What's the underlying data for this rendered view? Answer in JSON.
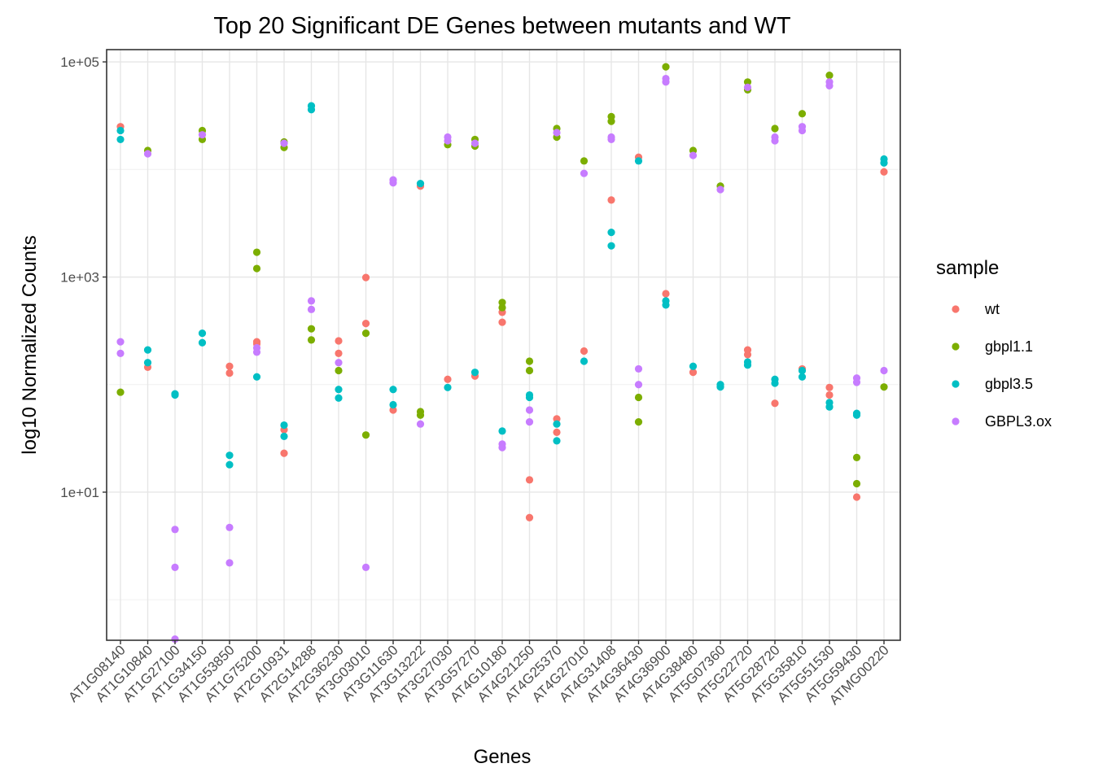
{
  "chart_data": {
    "type": "scatter",
    "title": "Top 20 Significant DE Genes between mutants and WT",
    "xlabel": "Genes",
    "ylabel": "log10 Normalized Counts",
    "y_scale": "log10",
    "ylim": [
      0.42,
      130000
    ],
    "yticks": [
      10,
      1000,
      100000
    ],
    "ytick_labels": [
      "1e+01",
      "1e+03",
      "1e+05"
    ],
    "grid": true,
    "legend_position": "right",
    "legend_title": "sample",
    "categories": [
      "AT1G08140",
      "AT1G10840",
      "AT1G27100",
      "AT1G34150",
      "AT1G53850",
      "AT1G75200",
      "AT2G10931",
      "AT2G14288",
      "AT2G36230",
      "AT3G03010",
      "AT3G11630",
      "AT3G13222",
      "AT3G27030",
      "AT3G57270",
      "AT4G10180",
      "AT4G21250",
      "AT4G25370",
      "AT4G27010",
      "AT4G31408",
      "AT4G36430",
      "AT4G36900",
      "AT4G38480",
      "AT5G07360",
      "AT5G22720",
      "AT5G28720",
      "AT5G35810",
      "AT5G51530",
      "AT5G59430",
      "ATMG00220"
    ],
    "series": [
      {
        "name": "wt",
        "color": "#F8766D",
        "points": [
          [
            "AT1G08140",
            25000
          ],
          [
            "AT1G10840",
            145
          ],
          [
            "AT1G53850",
            148
          ],
          [
            "AT1G53850",
            128
          ],
          [
            "AT1G75200",
            250
          ],
          [
            "AT1G75200",
            240
          ],
          [
            "AT2G10931",
            38
          ],
          [
            "AT2G10931",
            23
          ],
          [
            "AT2G36230",
            255
          ],
          [
            "AT2G36230",
            195
          ],
          [
            "AT3G03010",
            990
          ],
          [
            "AT3G03010",
            370
          ],
          [
            "AT3G11630",
            58
          ],
          [
            "AT3G13222",
            7000
          ],
          [
            "AT3G27030",
            112
          ],
          [
            "AT3G57270",
            120
          ],
          [
            "AT4G10180",
            470
          ],
          [
            "AT4G10180",
            380
          ],
          [
            "AT4G21250",
            13
          ],
          [
            "AT4G21250",
            5.8
          ],
          [
            "AT4G25370",
            48
          ],
          [
            "AT4G25370",
            36
          ],
          [
            "AT4G27010",
            205
          ],
          [
            "AT4G31408",
            5200
          ],
          [
            "AT4G36430",
            13000
          ],
          [
            "AT4G36900",
            700
          ],
          [
            "AT4G38480",
            130
          ],
          [
            "AT5G22720",
            210
          ],
          [
            "AT5G22720",
            190
          ],
          [
            "AT5G28720",
            67
          ],
          [
            "AT5G35810",
            140
          ],
          [
            "AT5G51530",
            94
          ],
          [
            "AT5G51530",
            80
          ],
          [
            "AT5G59430",
            9
          ],
          [
            "ATMG00220",
            9500
          ]
        ]
      },
      {
        "name": "gbpl1.1",
        "color": "#7CAE00",
        "points": [
          [
            "AT1G08140",
            85
          ],
          [
            "AT1G10840",
            15000
          ],
          [
            "AT1G34150",
            23000
          ],
          [
            "AT1G34150",
            19000
          ],
          [
            "AT1G75200",
            1700
          ],
          [
            "AT1G75200",
            1200
          ],
          [
            "AT2G10931",
            18000
          ],
          [
            "AT2G10931",
            16000
          ],
          [
            "AT2G14288",
            330
          ],
          [
            "AT2G14288",
            260
          ],
          [
            "AT2G36230",
            135
          ],
          [
            "AT3G03010",
            300
          ],
          [
            "AT3G03010",
            34
          ],
          [
            "AT3G13222",
            56
          ],
          [
            "AT3G13222",
            52
          ],
          [
            "AT3G27030",
            17000
          ],
          [
            "AT3G57270",
            19000
          ],
          [
            "AT3G57270",
            16500
          ],
          [
            "AT4G10180",
            580
          ],
          [
            "AT4G10180",
            520
          ],
          [
            "AT4G21250",
            165
          ],
          [
            "AT4G21250",
            135
          ],
          [
            "AT4G25370",
            24000
          ],
          [
            "AT4G25370",
            20000
          ],
          [
            "AT4G27010",
            12000
          ],
          [
            "AT4G31408",
            31000
          ],
          [
            "AT4G31408",
            28000
          ],
          [
            "AT4G36430",
            76
          ],
          [
            "AT4G36430",
            45
          ],
          [
            "AT4G36900",
            90000
          ],
          [
            "AT4G38480",
            15000
          ],
          [
            "AT5G07360",
            7000
          ],
          [
            "AT5G22720",
            65000
          ],
          [
            "AT5G22720",
            55000
          ],
          [
            "AT5G28720",
            24000
          ],
          [
            "AT5G35810",
            33000
          ],
          [
            "AT5G51530",
            75000
          ],
          [
            "AT5G59430",
            21
          ],
          [
            "AT5G59430",
            12
          ],
          [
            "ATMG00220",
            95
          ]
        ]
      },
      {
        "name": "gbpl3.5",
        "color": "#00BFC4",
        "points": [
          [
            "AT1G08140",
            23000
          ],
          [
            "AT1G08140",
            19000
          ],
          [
            "AT1G10840",
            210
          ],
          [
            "AT1G10840",
            160
          ],
          [
            "AT1G27100",
            82
          ],
          [
            "AT1G27100",
            80
          ],
          [
            "AT1G34150",
            300
          ],
          [
            "AT1G34150",
            245
          ],
          [
            "AT1G53850",
            22
          ],
          [
            "AT1G53850",
            18
          ],
          [
            "AT1G75200",
            118
          ],
          [
            "AT2G10931",
            42
          ],
          [
            "AT2G10931",
            33
          ],
          [
            "AT2G14288",
            39000
          ],
          [
            "AT2G14288",
            36000
          ],
          [
            "AT2G36230",
            90
          ],
          [
            "AT2G36230",
            75
          ],
          [
            "AT3G11630",
            90
          ],
          [
            "AT3G11630",
            65
          ],
          [
            "AT3G13222",
            7400
          ],
          [
            "AT3G27030",
            94
          ],
          [
            "AT3G57270",
            130
          ],
          [
            "AT4G10180",
            37
          ],
          [
            "AT4G21250",
            80
          ],
          [
            "AT4G21250",
            76
          ],
          [
            "AT4G25370",
            43
          ],
          [
            "AT4G25370",
            30
          ],
          [
            "AT4G27010",
            165
          ],
          [
            "AT4G31408",
            2600
          ],
          [
            "AT4G31408",
            1950
          ],
          [
            "AT4G36430",
            12000
          ],
          [
            "AT4G36900",
            600
          ],
          [
            "AT4G36900",
            550
          ],
          [
            "AT4G38480",
            148
          ],
          [
            "AT5G07360",
            100
          ],
          [
            "AT5G07360",
            95
          ],
          [
            "AT5G22720",
            162
          ],
          [
            "AT5G22720",
            152
          ],
          [
            "AT5G28720",
            112
          ],
          [
            "AT5G28720",
            103
          ],
          [
            "AT5G35810",
            135
          ],
          [
            "AT5G35810",
            118
          ],
          [
            "AT5G51530",
            68
          ],
          [
            "AT5G51530",
            62
          ],
          [
            "AT5G59430",
            54
          ],
          [
            "AT5G59430",
            52
          ],
          [
            "ATMG00220",
            12500
          ],
          [
            "ATMG00220",
            11500
          ]
        ]
      },
      {
        "name": "GBPL3.ox",
        "color": "#C77CFF",
        "points": [
          [
            "AT1G08140",
            250
          ],
          [
            "AT1G08140",
            195
          ],
          [
            "AT1G10840",
            14000
          ],
          [
            "AT1G27100",
            4.5
          ],
          [
            "AT1G27100",
            2
          ],
          [
            "AT1G27100",
            0.43
          ],
          [
            "AT1G34150",
            21000
          ],
          [
            "AT1G53850",
            4.7
          ],
          [
            "AT1G53850",
            2.2
          ],
          [
            "AT1G75200",
            220
          ],
          [
            "AT1G75200",
            200
          ],
          [
            "AT2G10931",
            17500
          ],
          [
            "AT2G14288",
            600
          ],
          [
            "AT2G14288",
            500
          ],
          [
            "AT2G36230",
            160
          ],
          [
            "AT3G03010",
            2
          ],
          [
            "AT3G11630",
            8000
          ],
          [
            "AT3G11630",
            7500
          ],
          [
            "AT3G13222",
            43
          ],
          [
            "AT3G27030",
            20000
          ],
          [
            "AT3G27030",
            18500
          ],
          [
            "AT3G57270",
            17500
          ],
          [
            "AT4G10180",
            28
          ],
          [
            "AT4G10180",
            26
          ],
          [
            "AT4G21250",
            58
          ],
          [
            "AT4G21250",
            45
          ],
          [
            "AT4G25370",
            22000
          ],
          [
            "AT4G27010",
            9200
          ],
          [
            "AT4G31408",
            20000
          ],
          [
            "AT4G31408",
            19000
          ],
          [
            "AT4G36430",
            140
          ],
          [
            "AT4G36430",
            100
          ],
          [
            "AT4G36900",
            70000
          ],
          [
            "AT4G36900",
            65000
          ],
          [
            "AT4G38480",
            13500
          ],
          [
            "AT5G07360",
            6500
          ],
          [
            "AT5G22720",
            58000
          ],
          [
            "AT5G28720",
            20000
          ],
          [
            "AT5G28720",
            18500
          ],
          [
            "AT5G35810",
            25000
          ],
          [
            "AT5G35810",
            23000
          ],
          [
            "AT5G51530",
            65000
          ],
          [
            "AT5G51530",
            60000
          ],
          [
            "AT5G59430",
            115
          ],
          [
            "AT5G59430",
            105
          ],
          [
            "ATMG00220",
            135
          ]
        ]
      }
    ]
  }
}
